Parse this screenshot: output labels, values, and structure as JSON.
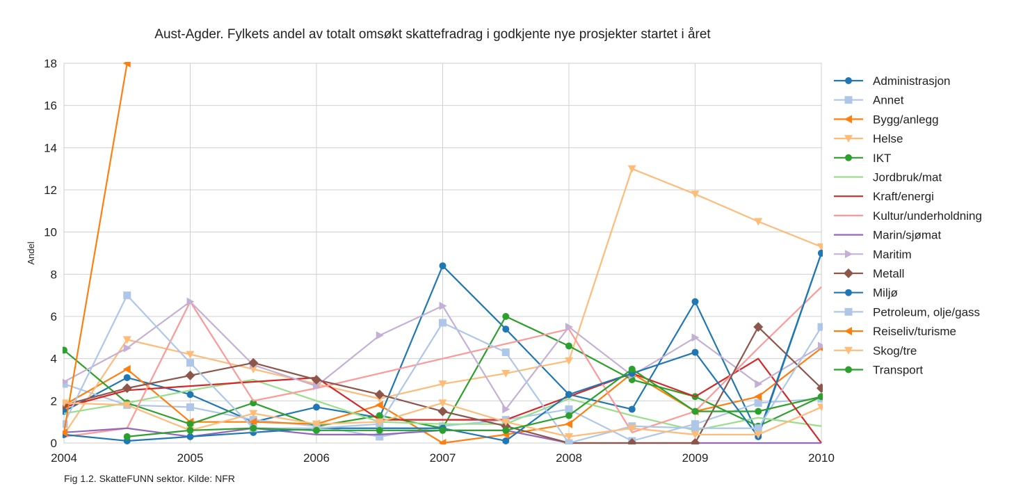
{
  "chart_data": {
    "type": "line",
    "title": "Aust-Agder. Fylkets andel av totalt omsøkt skattefradrag i godkjente nye prosjekter startet i året",
    "xlabel": "",
    "ylabel": "Andel",
    "xlim": [
      2004,
      2010
    ],
    "ylim": [
      0,
      18
    ],
    "x_ticks": [
      "2004",
      "2005",
      "2006",
      "2007",
      "2008",
      "2009",
      "2010"
    ],
    "y_ticks": [
      "0",
      "2",
      "4",
      "6",
      "8",
      "10",
      "12",
      "14",
      "16",
      "18"
    ],
    "grid": true,
    "legend_position": "right",
    "series": [
      {
        "name": "Administrasjon",
        "color": "#1f77b4",
        "marker": "circle",
        "points": [
          [
            2004,
            1.5
          ],
          [
            2004.5,
            3.1
          ],
          [
            2005,
            2.3
          ],
          [
            2005.5,
            1.0
          ],
          [
            2006,
            1.7
          ],
          [
            2006.5,
            1.2
          ],
          [
            2007,
            8.4
          ],
          [
            2007.5,
            5.4
          ],
          [
            2008,
            2.3
          ],
          [
            2008.5,
            1.6
          ],
          [
            2009,
            6.7
          ],
          [
            2009.5,
            0.4
          ],
          [
            2010,
            9.0
          ]
        ]
      },
      {
        "name": "Annet",
        "color": "#aec7e8",
        "marker": "square",
        "points": [
          [
            2004,
            2.8
          ],
          [
            2004.5,
            1.8
          ],
          [
            2005,
            1.7
          ],
          [
            2005.5,
            1.1
          ],
          [
            2006,
            0.8
          ],
          [
            2006.5,
            0.3
          ],
          [
            2007,
            0.8
          ],
          [
            2007.5,
            1.1
          ],
          [
            2008,
            1.6
          ],
          [
            2008.5,
            0.1
          ],
          [
            2009,
            0.9
          ],
          [
            2009.5,
            1.9
          ],
          [
            2010,
            2.1
          ]
        ]
      },
      {
        "name": "Bygg/anlegg",
        "color": "#ff7f0e",
        "marker": "triangle-left",
        "points": [
          [
            2004,
            1.8
          ],
          [
            2004.5,
            3.5
          ],
          [
            2005,
            1.0
          ],
          [
            2005.5,
            1.0
          ],
          [
            2006,
            0.9
          ],
          [
            2006.5,
            1.8
          ],
          [
            2007,
            0.0
          ],
          [
            2007.5,
            0.4
          ],
          [
            2008,
            0.9
          ],
          [
            2008.5,
            3.3
          ],
          [
            2009,
            1.5
          ],
          [
            2009.5,
            2.2
          ],
          [
            2010,
            4.5
          ]
        ]
      },
      {
        "name": "Helse",
        "color": "#ffbb78",
        "marker": "triangle-down",
        "points": [
          [
            2004,
            0.4
          ],
          [
            2004.5,
            4.9
          ],
          [
            2005,
            4.2
          ],
          [
            2005.5,
            3.5
          ],
          [
            2006,
            2.8
          ],
          [
            2006.5,
            2.1
          ],
          [
            2007,
            2.8
          ],
          [
            2007.5,
            3.3
          ],
          [
            2008,
            3.9
          ],
          [
            2008.5,
            13.0
          ],
          [
            2009,
            11.8
          ],
          [
            2009.5,
            10.5
          ],
          [
            2010,
            9.3
          ]
        ]
      },
      {
        "name": "IKT",
        "color": "#2ca02c",
        "marker": "circle",
        "points": [
          [
            2004,
            4.4
          ],
          [
            2004.5,
            1.9
          ],
          [
            2005,
            0.9
          ],
          [
            2005.5,
            1.9
          ],
          [
            2006,
            0.8
          ],
          [
            2006.5,
            1.3
          ],
          [
            2007,
            0.7
          ],
          [
            2007.5,
            6.0
          ],
          [
            2008,
            4.6
          ],
          [
            2008.5,
            3.0
          ],
          [
            2009,
            2.2
          ],
          [
            2009.5,
            0.8
          ],
          [
            2010,
            2.2
          ]
        ]
      },
      {
        "name": "Jordbruk/mat",
        "color": "#98df8a",
        "marker": "none",
        "points": [
          [
            2004,
            1.4
          ],
          [
            2004.5,
            1.9
          ],
          [
            2005,
            2.5
          ],
          [
            2005.5,
            3.0
          ],
          [
            2006,
            2.0
          ],
          [
            2006.5,
            1.0
          ],
          [
            2007,
            0.9
          ],
          [
            2007.5,
            0.9
          ],
          [
            2008,
            2.1
          ],
          [
            2008.5,
            1.3
          ],
          [
            2009,
            0.6
          ],
          [
            2009.5,
            1.2
          ],
          [
            2010,
            0.8
          ]
        ]
      },
      {
        "name": "Kraft/energi",
        "color": "#d62728",
        "marker": "none",
        "points": [
          [
            2004,
            1.7
          ],
          [
            2004.5,
            2.5
          ],
          [
            2005,
            2.7
          ],
          [
            2005.5,
            2.9
          ],
          [
            2006,
            3.1
          ],
          [
            2006.5,
            1.1
          ],
          [
            2007,
            1.1
          ],
          [
            2007.5,
            1.1
          ],
          [
            2008,
            2.2
          ],
          [
            2008.5,
            3.3
          ],
          [
            2009,
            2.2
          ],
          [
            2009.5,
            4.0
          ],
          [
            2010,
            0.0
          ]
        ]
      },
      {
        "name": "Kultur/underholdning",
        "color": "#ff9896",
        "marker": "none",
        "points": [
          [
            2004,
            0.3
          ],
          [
            2004.5,
            0.7
          ],
          [
            2005,
            6.7
          ],
          [
            2005.5,
            2.0
          ],
          [
            2006,
            2.6
          ],
          [
            2006.5,
            3.3
          ],
          [
            2007,
            4.0
          ],
          [
            2007.5,
            4.7
          ],
          [
            2008,
            5.4
          ],
          [
            2008.5,
            0.5
          ],
          [
            2009,
            1.5
          ],
          [
            2009.5,
            4.5
          ],
          [
            2010,
            7.4
          ]
        ]
      },
      {
        "name": "Marin/sjømat",
        "color": "#9467bd",
        "marker": "none",
        "points": [
          [
            2004,
            0.5
          ],
          [
            2004.5,
            0.7
          ],
          [
            2005,
            0.3
          ],
          [
            2005.5,
            0.7
          ],
          [
            2006,
            0.4
          ],
          [
            2006.5,
            0.4
          ],
          [
            2007,
            0.6
          ],
          [
            2007.5,
            0.6
          ],
          [
            2008,
            0.0
          ],
          [
            2008.5,
            0.0
          ],
          [
            2009,
            0.0
          ],
          [
            2009.5,
            0.0
          ],
          [
            2010,
            0.0
          ]
        ]
      },
      {
        "name": "Maritim",
        "color": "#c5b0d5",
        "marker": "triangle-right",
        "points": [
          [
            2004,
            2.9
          ],
          [
            2004.5,
            4.5
          ],
          [
            2005,
            6.7
          ],
          [
            2005.5,
            3.7
          ],
          [
            2006,
            2.7
          ],
          [
            2006.5,
            5.1
          ],
          [
            2007,
            6.5
          ],
          [
            2007.5,
            1.6
          ],
          [
            2008,
            5.5
          ],
          [
            2008.5,
            3.2
          ],
          [
            2009,
            5.0
          ],
          [
            2009.5,
            2.8
          ],
          [
            2010,
            4.6
          ]
        ]
      },
      {
        "name": "Metall",
        "color": "#8c564b",
        "marker": "diamond",
        "points": [
          [
            2004,
            1.8
          ],
          [
            2004.5,
            2.6
          ],
          [
            2005,
            3.2
          ],
          [
            2005.5,
            3.8
          ],
          [
            2006,
            3.0
          ],
          [
            2006.5,
            2.3
          ],
          [
            2007,
            1.5
          ],
          [
            2007.5,
            0.8
          ],
          [
            2008,
            0.0
          ],
          [
            2008.5,
            0.0
          ],
          [
            2009,
            0.0
          ],
          [
            2009.5,
            5.5
          ],
          [
            2010,
            2.6
          ]
        ]
      },
      {
        "name": "Miljø",
        "color": "#1f77b4",
        "marker": "circle",
        "points": [
          [
            2004,
            0.4
          ],
          [
            2004.5,
            0.1
          ],
          [
            2005,
            0.3
          ],
          [
            2005.5,
            0.5
          ],
          [
            2006,
            0.7
          ],
          [
            2006.5,
            0.7
          ],
          [
            2007,
            0.7
          ],
          [
            2007.5,
            0.1
          ],
          [
            2008,
            2.3
          ],
          [
            2008.5,
            3.3
          ],
          [
            2009,
            4.3
          ],
          [
            2009.5,
            0.3
          ],
          [
            2010,
            9.0
          ]
        ]
      },
      {
        "name": "Petroleum, olje/gass",
        "color": "#aec7e8",
        "marker": "square",
        "points": [
          [
            2004,
            0.9
          ],
          [
            2004.5,
            7.0
          ],
          [
            2005,
            3.8
          ],
          [
            2005.5,
            0.7
          ],
          [
            2006,
            0.7
          ],
          [
            2006.5,
            0.9
          ],
          [
            2007,
            5.7
          ],
          [
            2007.5,
            4.3
          ],
          [
            2008,
            0.0
          ],
          [
            2008.5,
            0.8
          ],
          [
            2009,
            0.7
          ],
          [
            2009.5,
            0.7
          ],
          [
            2010,
            5.5
          ]
        ]
      },
      {
        "name": "Reiseliv/turisme",
        "color": "#ff7f0e",
        "marker": "triangle-left",
        "points": [
          [
            2004,
            0.5
          ],
          [
            2004.5,
            18.0
          ]
        ]
      },
      {
        "name": "Skog/tre",
        "color": "#ffbb78",
        "marker": "triangle-down",
        "points": [
          [
            2004,
            1.9
          ],
          [
            2004.5,
            1.8
          ],
          [
            2005,
            0.6
          ],
          [
            2005.5,
            1.4
          ],
          [
            2006,
            0.9
          ],
          [
            2006.5,
            1.0
          ],
          [
            2007,
            1.9
          ],
          [
            2007.5,
            1.0
          ],
          [
            2008,
            0.3
          ],
          [
            2008.5,
            0.7
          ],
          [
            2009,
            0.4
          ],
          [
            2009.5,
            0.4
          ],
          [
            2010,
            1.7
          ]
        ]
      },
      {
        "name": "Transport",
        "color": "#2ca02c",
        "marker": "circle",
        "points": [
          [
            2004.5,
            0.3
          ],
          [
            2005,
            0.6
          ],
          [
            2005.5,
            0.7
          ],
          [
            2006,
            0.6
          ],
          [
            2006.5,
            0.6
          ],
          [
            2007,
            0.6
          ],
          [
            2007.5,
            0.6
          ],
          [
            2008,
            1.3
          ],
          [
            2008.5,
            3.5
          ],
          [
            2009,
            1.5
          ],
          [
            2009.5,
            1.5
          ],
          [
            2010,
            2.2
          ]
        ]
      }
    ]
  },
  "caption": "Fig 1.2. SkatteFUNN sektor. Kilde: NFR"
}
